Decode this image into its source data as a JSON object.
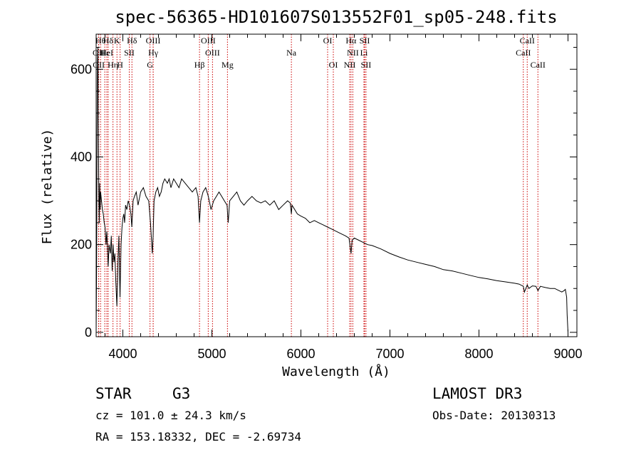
{
  "colors": {
    "line_marker": "#cc0000",
    "spectrum": "#000000",
    "axis": "#000000"
  },
  "chart_data": {
    "type": "line",
    "title": "spec-56365-HD101607S013552F01_sp05-248.fits",
    "xlabel": "Wavelength (Å)",
    "ylabel": "Flux (relative)",
    "xlim": [
      3700,
      9100
    ],
    "ylim": [
      -10,
      680
    ],
    "x_ticks": [
      4000,
      5000,
      6000,
      7000,
      8000,
      9000
    ],
    "y_ticks": [
      0,
      200,
      400,
      600
    ],
    "series": [
      {
        "name": "spectrum",
        "x": [
          3700,
          3705,
          3710,
          3715,
          3720,
          3725,
          3730,
          3735,
          3740,
          3745,
          3750,
          3760,
          3770,
          3780,
          3790,
          3800,
          3810,
          3820,
          3835,
          3845,
          3860,
          3870,
          3880,
          3890,
          3900,
          3910,
          3920,
          3933,
          3945,
          3955,
          3968,
          3980,
          3990,
          4000,
          4010,
          4020,
          4030,
          4045,
          4060,
          4075,
          4090,
          4101,
          4115,
          4130,
          4150,
          4170,
          4200,
          4230,
          4260,
          4290,
          4310,
          4330,
          4340,
          4350,
          4370,
          4390,
          4410,
          4430,
          4450,
          4470,
          4500,
          4520,
          4540,
          4570,
          4600,
          4630,
          4660,
          4700,
          4740,
          4780,
          4820,
          4845,
          4861,
          4875,
          4900,
          4930,
          4960,
          4990,
          5020,
          5050,
          5080,
          5110,
          5140,
          5170,
          5183,
          5200,
          5240,
          5280,
          5320,
          5360,
          5400,
          5450,
          5500,
          5550,
          5600,
          5650,
          5700,
          5750,
          5800,
          5850,
          5880,
          5893,
          5900,
          5930,
          5960,
          6000,
          6050,
          6100,
          6150,
          6200,
          6250,
          6300,
          6350,
          6400,
          6450,
          6500,
          6540,
          6563,
          6575,
          6600,
          6650,
          6700,
          6750,
          6800,
          6900,
          7000,
          7100,
          7200,
          7300,
          7400,
          7500,
          7600,
          7700,
          7800,
          7900,
          8000,
          8100,
          8200,
          8300,
          8400,
          8450,
          8498,
          8510,
          8542,
          8560,
          8600,
          8640,
          8662,
          8690,
          8750,
          8800,
          8850,
          8880,
          8900,
          8930,
          8955,
          8970,
          8985,
          8990,
          9000
        ],
        "y": [
          0,
          140,
          450,
          620,
          650,
          480,
          300,
          250,
          340,
          280,
          320,
          300,
          280,
          270,
          250,
          240,
          200,
          230,
          150,
          200,
          180,
          220,
          140,
          200,
          160,
          180,
          120,
          60,
          160,
          220,
          80,
          200,
          240,
          260,
          270,
          250,
          290,
          280,
          300,
          290,
          270,
          240,
          300,
          310,
          320,
          290,
          320,
          330,
          310,
          300,
          250,
          180,
          220,
          300,
          320,
          330,
          310,
          320,
          340,
          350,
          340,
          350,
          330,
          350,
          340,
          330,
          350,
          340,
          330,
          320,
          330,
          310,
          250,
          300,
          320,
          330,
          310,
          280,
          300,
          310,
          320,
          310,
          300,
          290,
          250,
          300,
          310,
          320,
          300,
          290,
          300,
          310,
          300,
          295,
          300,
          290,
          300,
          280,
          290,
          300,
          295,
          270,
          290,
          280,
          270,
          265,
          260,
          250,
          255,
          250,
          245,
          240,
          235,
          230,
          225,
          220,
          215,
          180,
          210,
          215,
          210,
          205,
          200,
          198,
          190,
          180,
          172,
          165,
          160,
          155,
          150,
          143,
          140,
          135,
          130,
          125,
          122,
          118,
          115,
          112,
          110,
          105,
          92,
          108,
          100,
          106,
          105,
          95,
          105,
          102,
          100,
          100,
          97,
          95,
          92,
          95,
          98,
          80,
          40,
          0
        ]
      }
    ],
    "line_markers": [
      {
        "label": "OII",
        "x": 3727,
        "row": 2
      },
      {
        "label": "OII",
        "x": 3729,
        "row": 3
      },
      {
        "label": "Hθ",
        "x": 3750,
        "row": 1
      },
      {
        "label": "Hε",
        "x": 3797,
        "row": 2
      },
      {
        "label": "HeI",
        "x": 3820,
        "row": 2
      },
      {
        "label": "Hδ",
        "x": 3835,
        "row": 1
      },
      {
        "label": "Hη",
        "x": 3889,
        "row": 3
      },
      {
        "label": "K",
        "x": 3934,
        "row": 1
      },
      {
        "label": "H",
        "x": 3969,
        "row": 3
      },
      {
        "label": "SII",
        "x": 4072,
        "row": 2
      },
      {
        "label": "Hδ",
        "x": 4102,
        "row": 1
      },
      {
        "label": "OIII",
        "x": 4340,
        "row": 1
      },
      {
        "label": "Hγ",
        "x": 4341,
        "row": 2
      },
      {
        "label": "G",
        "x": 4305,
        "row": 3
      },
      {
        "label": "Hβ",
        "x": 4861,
        "row": 3
      },
      {
        "label": "OIII",
        "x": 4959,
        "row": 1
      },
      {
        "label": "OIII",
        "x": 5007,
        "row": 2
      },
      {
        "label": "Mg",
        "x": 5175,
        "row": 3
      },
      {
        "label": "Na",
        "x": 5893,
        "row": 2
      },
      {
        "label": "OI",
        "x": 6300,
        "row": 1
      },
      {
        "label": "OI",
        "x": 6364,
        "row": 3
      },
      {
        "label": "Hα",
        "x": 6563,
        "row": 1
      },
      {
        "label": "NII",
        "x": 6583,
        "row": 2
      },
      {
        "label": "NII",
        "x": 6548,
        "row": 3
      },
      {
        "label": "SII",
        "x": 6716,
        "row": 1
      },
      {
        "label": "Li",
        "x": 6708,
        "row": 2
      },
      {
        "label": "SII",
        "x": 6731,
        "row": 3
      },
      {
        "label": "CaII",
        "x": 8498,
        "row": 2
      },
      {
        "label": "CaII",
        "x": 8542,
        "row": 1
      },
      {
        "label": "CaII",
        "x": 8662,
        "row": 3
      }
    ]
  },
  "info": {
    "object_class": "STAR",
    "subclass": "G3",
    "survey": "LAMOST DR3",
    "cz": "cz = 101.0 ± 24.3 km/s",
    "obs_date": "Obs-Date: 20130313",
    "coords": "RA = 153.18332, DEC =  -2.69734"
  }
}
